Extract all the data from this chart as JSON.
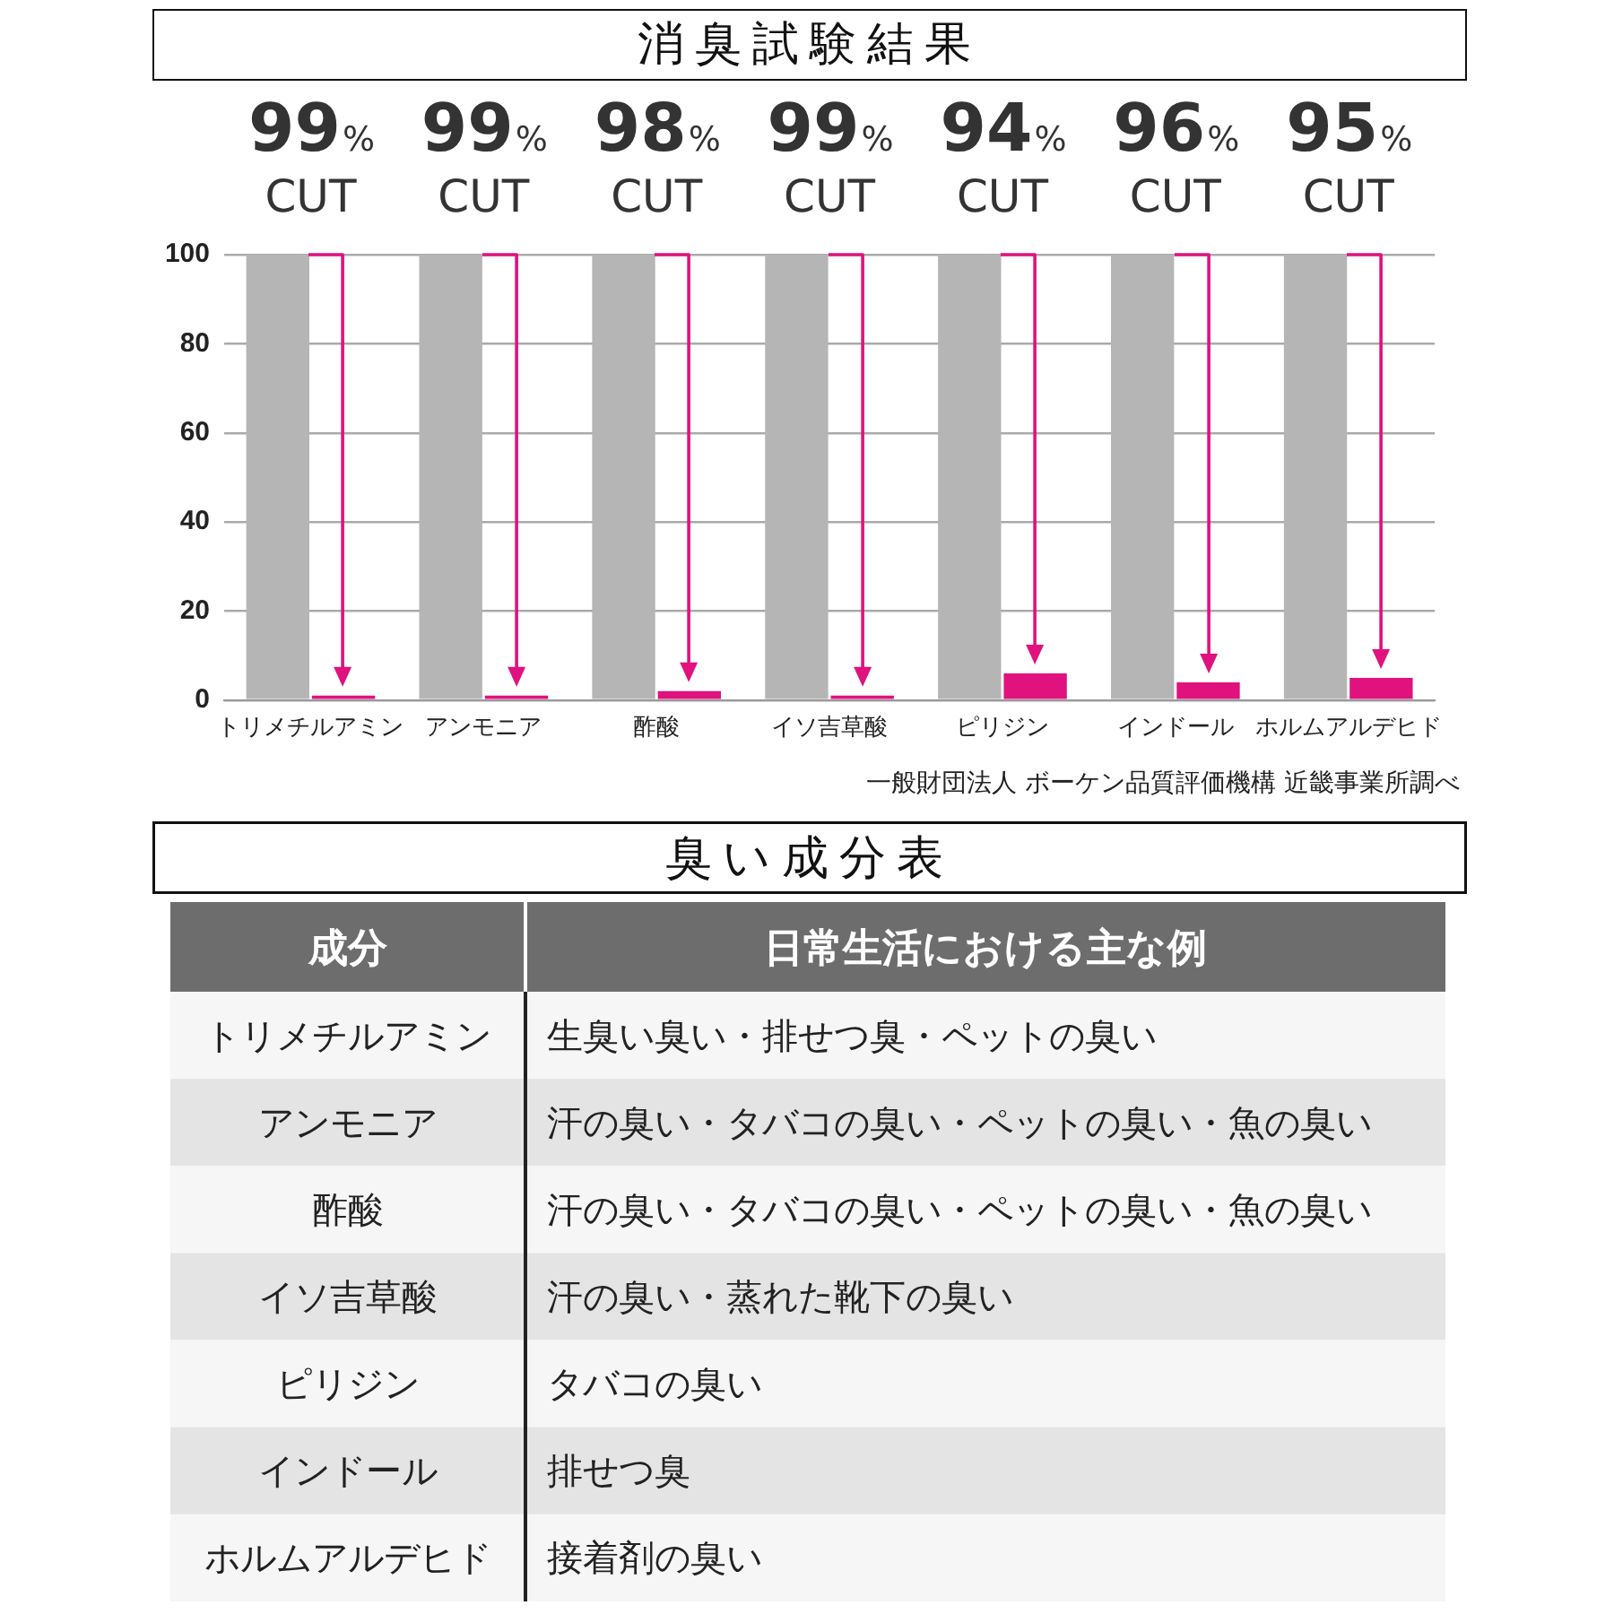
{
  "chart_data": [
    {
      "type": "bar",
      "title": "消臭試験結果",
      "categories": [
        "トリメチルアミン",
        "アンモニア",
        "酢酸",
        "イソ吉草酸",
        "ピリジン",
        "インドール",
        "ホルムアルデヒド"
      ],
      "series": [
        {
          "color": "#b5b5b5",
          "values": [
            100,
            100,
            100,
            100,
            100,
            100,
            100
          ]
        },
        {
          "color": "#e0127e",
          "values": [
            1,
            1,
            2,
            1,
            6,
            4,
            5
          ]
        }
      ],
      "ylim": [
        0,
        100
      ],
      "yticks": [
        0,
        20,
        40,
        60,
        80,
        100
      ],
      "grid": "y",
      "annotations": [
        {
          "text": "99% CUT",
          "x": "トリメチルアミン",
          "y": 100
        },
        {
          "text": "99% CUT",
          "x": "アンモニア",
          "y": 100
        },
        {
          "text": "98% CUT",
          "x": "酢酸",
          "y": 100
        },
        {
          "text": "99% CUT",
          "x": "イソ吉草酸",
          "y": 100
        },
        {
          "text": "94% CUT",
          "x": "ピリジン",
          "y": 100
        },
        {
          "text": "96% CUT",
          "x": "インドール",
          "y": 100
        },
        {
          "text": "95% CUT",
          "x": "ホルムアルデヒド",
          "y": 100
        },
        "一般財団法人 ボーケン品質評価機構 近畿事業所調べ"
      ]
    },
    {
      "type": "other",
      "title": "臭い成分表",
      "xlabel": "成分",
      "ylabel": "日常生活における主な例",
      "categories": [
        "トリメチルアミン",
        "アンモニア",
        "酢酸",
        "イソ吉草酸",
        "ピリジン",
        "インドール",
        "ホルムアルデヒド"
      ],
      "annotations": [
        "生臭い臭い・排せつ臭・ペットの臭い",
        "汗の臭い・タバコの臭い・ペットの臭い・魚の臭い",
        "汗の臭い・タバコの臭い・ペットの臭い・魚の臭い",
        "汗の臭い・蒸れた靴下の臭い",
        "タバコの臭い",
        "排せつ臭",
        "接着剤の臭い"
      ]
    }
  ]
}
